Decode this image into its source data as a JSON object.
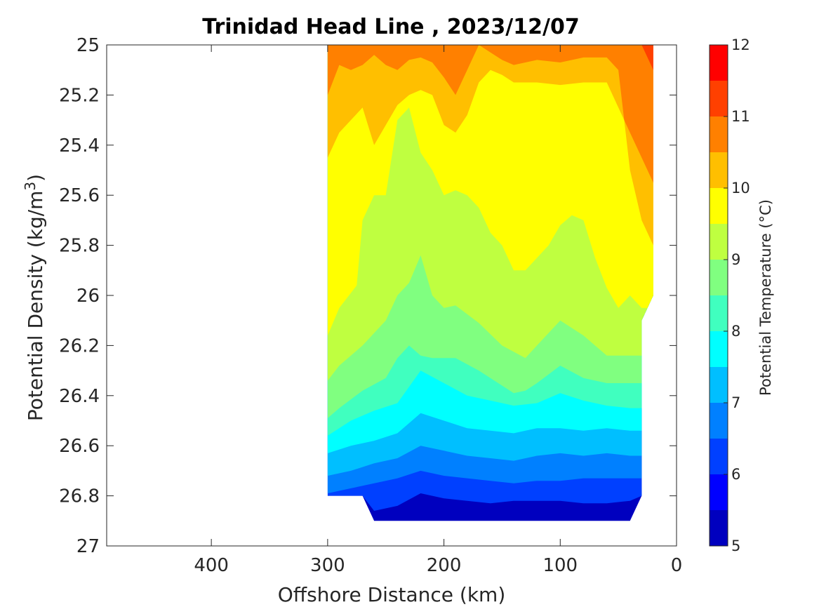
{
  "chart_data": {
    "type": "heatmap",
    "subtype": "filled-contour",
    "title": "Trinidad Head Line , 2023/12/07",
    "xlabel": "Offshore Distance (km)",
    "ylabel": "Potential Density (kg/m",
    "ylabel_superscript": "3",
    "ylabel_suffix": ")",
    "x_reversed": true,
    "y_reversed": true,
    "xlim": [
      490,
      0
    ],
    "ylim": [
      25,
      27
    ],
    "x_ticks": [
      400,
      300,
      200,
      100,
      0
    ],
    "y_ticks": [
      25,
      25.2,
      25.4,
      25.6,
      25.8,
      26,
      26.2,
      26.4,
      26.6,
      26.8,
      27
    ],
    "y_tick_labels": [
      "25",
      "25.2",
      "25.4",
      "25.6",
      "25.8",
      "26",
      "26.2",
      "26.4",
      "26.6",
      "26.8",
      "27"
    ],
    "colorbar": {
      "label": "Potential Temperature (°C)",
      "range": [
        5,
        12
      ],
      "ticks": [
        5,
        6,
        7,
        8,
        9,
        10,
        11,
        12
      ],
      "levels": [
        5,
        5.5,
        6,
        6.5,
        7,
        7.5,
        8,
        8.5,
        9,
        9.5,
        10,
        10.5,
        11,
        11.5,
        12
      ],
      "colors": [
        "#000080",
        "#0000bf",
        "#0000ff",
        "#0040ff",
        "#0080ff",
        "#00bfff",
        "#00ffff",
        "#40ffbf",
        "#80ff80",
        "#bfff40",
        "#ffff00",
        "#ffbf00",
        "#ff8000",
        "#ff4000",
        "#ff0000",
        "#bf0000"
      ],
      "colors_note": "14 bands between levels; first and last listed colors bracket the scale"
    },
    "domain": {
      "x_range_km": [
        300,
        20
      ],
      "deep_limit": 26.9
    },
    "isolines": [
      {
        "level": 6.0,
        "x": [
          300,
          270,
          260,
          240,
          220,
          200,
          180,
          160,
          140,
          120,
          100,
          80,
          60,
          40,
          30
        ],
        "y": [
          26.8,
          26.8,
          26.86,
          26.84,
          26.79,
          26.81,
          26.82,
          26.83,
          26.82,
          26.82,
          26.82,
          26.83,
          26.83,
          26.82,
          26.8
        ]
      },
      {
        "level": 6.5,
        "x": [
          300,
          280,
          260,
          240,
          220,
          200,
          180,
          160,
          140,
          120,
          100,
          80,
          60,
          40,
          30
        ],
        "y": [
          26.79,
          26.77,
          26.75,
          26.73,
          26.7,
          26.72,
          26.73,
          26.74,
          26.75,
          26.74,
          26.74,
          26.73,
          26.73,
          26.73,
          26.73
        ]
      },
      {
        "level": 7.0,
        "x": [
          300,
          280,
          260,
          240,
          220,
          200,
          180,
          160,
          140,
          120,
          100,
          80,
          60,
          40,
          30
        ],
        "y": [
          26.72,
          26.7,
          26.67,
          26.65,
          26.6,
          26.62,
          26.64,
          26.65,
          26.66,
          26.64,
          26.63,
          26.64,
          26.63,
          26.64,
          26.64
        ]
      },
      {
        "level": 7.5,
        "x": [
          300,
          280,
          260,
          240,
          220,
          200,
          180,
          160,
          140,
          120,
          100,
          80,
          60,
          40,
          30
        ],
        "y": [
          26.63,
          26.6,
          26.58,
          26.55,
          26.47,
          26.5,
          26.53,
          26.54,
          26.55,
          26.53,
          26.53,
          26.54,
          26.53,
          26.54,
          26.54
        ]
      },
      {
        "level": 8.0,
        "x": [
          300,
          280,
          260,
          240,
          220,
          200,
          180,
          160,
          140,
          120,
          100,
          80,
          60,
          40,
          30
        ],
        "y": [
          26.56,
          26.5,
          26.46,
          26.43,
          26.3,
          26.35,
          26.4,
          26.42,
          26.44,
          26.43,
          26.39,
          26.42,
          26.44,
          26.45,
          26.45
        ]
      },
      {
        "level": 8.5,
        "x": [
          300,
          290,
          270,
          250,
          240,
          230,
          220,
          210,
          190,
          170,
          150,
          140,
          130,
          120,
          100,
          80,
          60,
          40,
          30
        ],
        "y": [
          26.49,
          26.45,
          26.38,
          26.33,
          26.25,
          26.2,
          26.24,
          26.25,
          26.25,
          26.3,
          26.36,
          26.39,
          26.38,
          26.35,
          26.28,
          26.33,
          26.35,
          26.35,
          26.35
        ]
      },
      {
        "level": 9.0,
        "x": [
          300,
          290,
          270,
          250,
          240,
          230,
          220,
          210,
          200,
          190,
          170,
          150,
          130,
          120,
          100,
          80,
          60,
          50,
          40,
          30
        ],
        "y": [
          26.34,
          26.28,
          26.2,
          26.1,
          26.0,
          25.95,
          25.84,
          26.0,
          26.05,
          26.04,
          26.11,
          26.2,
          26.25,
          26.2,
          26.1,
          26.16,
          26.24,
          26.24,
          26.24,
          26.24
        ]
      },
      {
        "level": 9.5,
        "x": [
          300,
          290,
          275,
          270,
          260,
          250,
          240,
          230,
          220,
          210,
          200,
          190,
          180,
          170,
          160,
          150,
          140,
          130,
          120,
          110,
          100,
          90,
          80,
          70,
          60,
          50,
          40,
          30
        ],
        "y": [
          26.16,
          26.05,
          25.96,
          25.7,
          25.6,
          25.6,
          25.3,
          25.25,
          25.43,
          25.5,
          25.6,
          25.58,
          25.6,
          25.65,
          25.75,
          25.8,
          25.9,
          25.9,
          25.85,
          25.8,
          25.72,
          25.68,
          25.7,
          25.85,
          25.97,
          26.05,
          26.0,
          26.05
        ]
      },
      {
        "level": 10.0,
        "x": [
          300,
          290,
          280,
          270,
          260,
          250,
          240,
          230,
          220,
          210,
          200,
          190,
          180,
          170,
          160,
          150,
          140,
          130,
          120,
          100,
          80,
          60,
          45,
          40,
          30,
          20
        ],
        "y": [
          25.45,
          25.35,
          25.3,
          25.25,
          25.4,
          25.32,
          25.24,
          25.2,
          25.18,
          25.2,
          25.32,
          25.35,
          25.28,
          25.15,
          25.1,
          25.12,
          25.15,
          25.15,
          25.15,
          25.16,
          25.15,
          25.15,
          25.3,
          25.5,
          25.7,
          25.8
        ]
      },
      {
        "level": 10.5,
        "x": [
          300,
          290,
          280,
          270,
          260,
          250,
          240,
          230,
          220,
          210,
          200,
          190,
          180,
          170,
          160,
          150,
          140,
          120,
          100,
          80,
          60,
          50,
          45,
          40,
          30,
          20
        ],
        "y": [
          25.2,
          25.08,
          25.1,
          25.08,
          25.04,
          25.08,
          25.1,
          25.06,
          25.05,
          25.07,
          25.13,
          25.2,
          25.1,
          25.0,
          25.03,
          25.06,
          25.08,
          25.06,
          25.07,
          25.05,
          25.05,
          25.1,
          25.3,
          25.35,
          25.45,
          25.55
        ]
      },
      {
        "level": 11.0,
        "x": [
          300,
          290,
          280,
          270,
          260,
          250,
          240,
          230,
          220,
          210,
          200,
          190,
          180,
          170,
          160,
          150,
          120,
          100,
          80,
          60,
          40,
          30,
          20
        ],
        "y": [
          25.0,
          25.0,
          25.0,
          25.0,
          25.0,
          25.0,
          25.0,
          25.0,
          25.0,
          25.0,
          25.0,
          25.0,
          25.0,
          25.0,
          25.0,
          25.0,
          25.0,
          25.0,
          25.0,
          25.0,
          25.0,
          25.0,
          25.1
        ]
      }
    ]
  }
}
